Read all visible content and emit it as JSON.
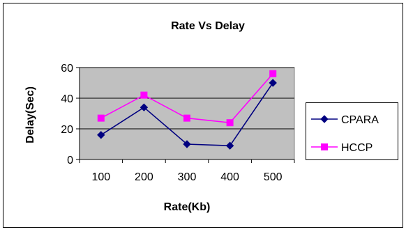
{
  "chart_data": {
    "type": "line",
    "title": "Rate Vs Delay",
    "xlabel": "Rate(Kb)",
    "ylabel": "Delay(Sec)",
    "categories": [
      "100",
      "200",
      "300",
      "400",
      "500"
    ],
    "ylim": [
      0,
      60
    ],
    "yticks": [
      0,
      20,
      40,
      60
    ],
    "grid": true,
    "legend_position": "right",
    "plot_background": "#c0c0c0",
    "series": [
      {
        "name": "CPARA",
        "values": [
          16,
          34,
          10,
          9,
          50
        ],
        "color": "#000080",
        "marker": "diamond"
      },
      {
        "name": "HCCP",
        "values": [
          27,
          42,
          27,
          24,
          56
        ],
        "color": "#ff00ff",
        "marker": "square"
      }
    ]
  }
}
